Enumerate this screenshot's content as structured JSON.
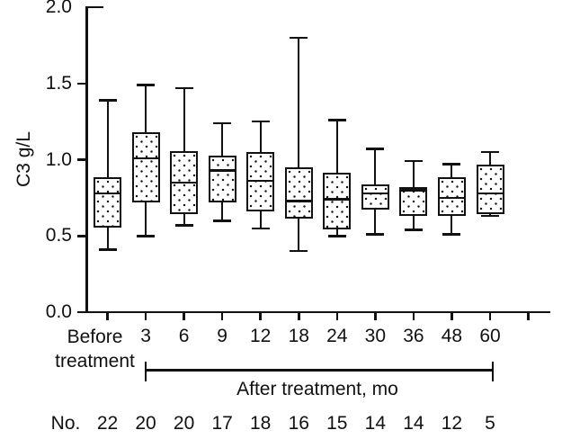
{
  "figure": {
    "background": "#ffffff",
    "line_color": "#111111"
  },
  "chart_data": {
    "type": "box",
    "title": "",
    "xlabel": "",
    "ylabel": "C3 g/L",
    "ylim": [
      0.0,
      2.0
    ],
    "ytick_labels": [
      "0.0",
      "0.5",
      "1.0",
      "1.5",
      "2.0"
    ],
    "grid": false,
    "legend": null,
    "box_fill": "white-with-black-dot-pattern",
    "categories": [
      "Before treatment",
      "3",
      "6",
      "9",
      "12",
      "18",
      "24",
      "30",
      "36",
      "48",
      "60"
    ],
    "x_group_bracket": {
      "label": "After treatment, mo",
      "from_category": "3",
      "to_category": "60"
    },
    "counts_row": {
      "label": "No.",
      "values": [
        "22",
        "20",
        "20",
        "17",
        "18",
        "16",
        "15",
        "14",
        "14",
        "12",
        "5"
      ]
    },
    "boxes": [
      {
        "category": "Before treatment",
        "n": 22,
        "whisker_low": 0.41,
        "q1": 0.56,
        "median": 0.78,
        "q3": 0.88,
        "whisker_high": 1.39
      },
      {
        "category": "3",
        "n": 20,
        "whisker_low": 0.5,
        "q1": 0.73,
        "median": 1.01,
        "q3": 1.17,
        "whisker_high": 1.49
      },
      {
        "category": "6",
        "n": 20,
        "whisker_low": 0.57,
        "q1": 0.65,
        "median": 0.85,
        "q3": 1.05,
        "whisker_high": 1.47
      },
      {
        "category": "9",
        "n": 17,
        "whisker_low": 0.6,
        "q1": 0.73,
        "median": 0.93,
        "q3": 1.02,
        "whisker_high": 1.24
      },
      {
        "category": "12",
        "n": 18,
        "whisker_low": 0.55,
        "q1": 0.67,
        "median": 0.86,
        "q3": 1.04,
        "whisker_high": 1.25
      },
      {
        "category": "18",
        "n": 16,
        "whisker_low": 0.4,
        "q1": 0.62,
        "median": 0.73,
        "q3": 0.94,
        "whisker_high": 1.8
      },
      {
        "category": "24",
        "n": 15,
        "whisker_low": 0.5,
        "q1": 0.55,
        "median": 0.74,
        "q3": 0.91,
        "whisker_high": 1.26
      },
      {
        "category": "30",
        "n": 14,
        "whisker_low": 0.51,
        "q1": 0.68,
        "median": 0.78,
        "q3": 0.83,
        "whisker_high": 1.07
      },
      {
        "category": "36",
        "n": 14,
        "whisker_low": 0.54,
        "q1": 0.64,
        "median": 0.8,
        "q3": 0.81,
        "whisker_high": 0.99
      },
      {
        "category": "48",
        "n": 12,
        "whisker_low": 0.51,
        "q1": 0.64,
        "median": 0.75,
        "q3": 0.88,
        "whisker_high": 0.97
      },
      {
        "category": "60",
        "n": 5,
        "whisker_low": 0.63,
        "q1": 0.65,
        "median": 0.78,
        "q3": 0.96,
        "whisker_high": 1.05
      }
    ]
  }
}
